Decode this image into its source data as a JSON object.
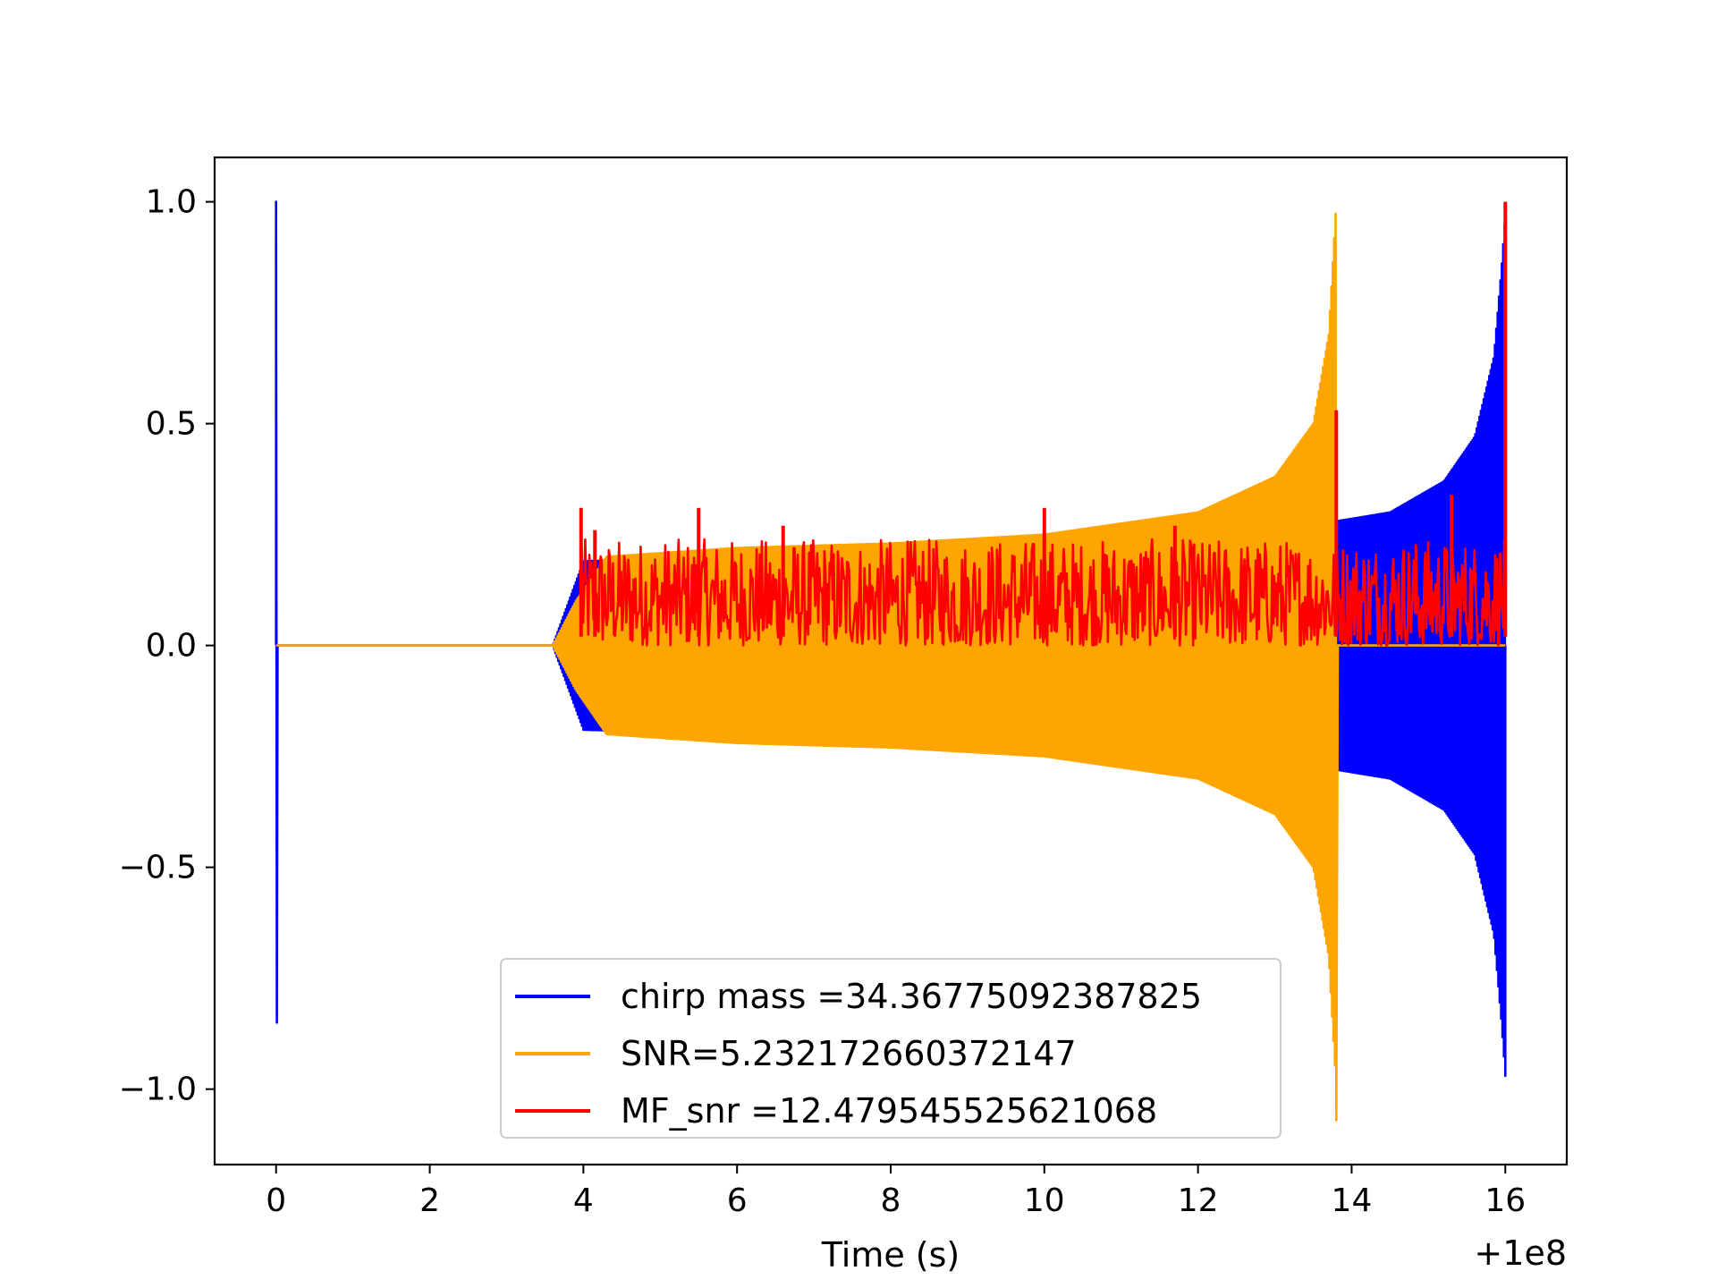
{
  "chart_data": {
    "type": "line",
    "title": "",
    "xlabel": "Time (s)",
    "ylabel": "",
    "x_offset_label": "+1e8",
    "xlim": [
      -0.8,
      16.8
    ],
    "ylim": [
      -1.17,
      1.1
    ],
    "xticks": [
      0,
      2,
      4,
      6,
      8,
      10,
      12,
      14,
      16
    ],
    "xtick_labels": [
      "0",
      "2",
      "4",
      "6",
      "8",
      "10",
      "12",
      "14",
      "16"
    ],
    "yticks": [
      1.0,
      0.5,
      0.0,
      -0.5,
      -1.0
    ],
    "ytick_labels": [
      "1.0",
      "0.5",
      "0.0",
      "−0.5",
      "−1.0"
    ],
    "grid": false,
    "legend_position": "lower center",
    "series": [
      {
        "name": "chirp mass =34.36775092387825",
        "color": "#0000ff",
        "kind": "waveform",
        "spike_x": 0.0,
        "spike_max": 1.0,
        "spike_min": -0.85,
        "start": 3.6,
        "end": 16.0,
        "env_points": [
          [
            3.6,
            0.0
          ],
          [
            4.0,
            0.19
          ],
          [
            6,
            0.2
          ],
          [
            8,
            0.21
          ],
          [
            10,
            0.23
          ],
          [
            12,
            0.26
          ],
          [
            13.8,
            0.28
          ],
          [
            14.5,
            0.3
          ],
          [
            15.2,
            0.37
          ],
          [
            15.6,
            0.47
          ],
          [
            15.85,
            0.65
          ],
          [
            15.95,
            0.85
          ],
          [
            16.0,
            0.97
          ]
        ]
      },
      {
        "name": "SNR=5.232172660372147",
        "color": "#ffa500",
        "kind": "waveform",
        "start": 3.6,
        "end": 13.8,
        "env_points": [
          [
            3.6,
            0.0
          ],
          [
            3.9,
            0.1
          ],
          [
            4.3,
            0.2
          ],
          [
            6,
            0.22
          ],
          [
            8,
            0.23
          ],
          [
            10,
            0.25
          ],
          [
            12,
            0.3
          ],
          [
            13,
            0.38
          ],
          [
            13.5,
            0.5
          ],
          [
            13.7,
            0.7
          ],
          [
            13.8,
            1.0
          ]
        ],
        "end_min": -1.07
      },
      {
        "name": "MF_snr =12.479545525621068",
        "color": "#ff0000",
        "kind": "noise",
        "start": 3.97,
        "end": 16.0,
        "base_range": [
          0.0,
          0.24
        ],
        "peaks": [
          [
            3.97,
            0.31
          ],
          [
            4.15,
            0.26
          ],
          [
            5.5,
            0.31
          ],
          [
            6.6,
            0.27
          ],
          [
            10.0,
            0.31
          ],
          [
            11.7,
            0.27
          ],
          [
            13.8,
            0.53
          ],
          [
            15.3,
            0.34
          ],
          [
            16.0,
            1.0
          ]
        ]
      }
    ]
  }
}
